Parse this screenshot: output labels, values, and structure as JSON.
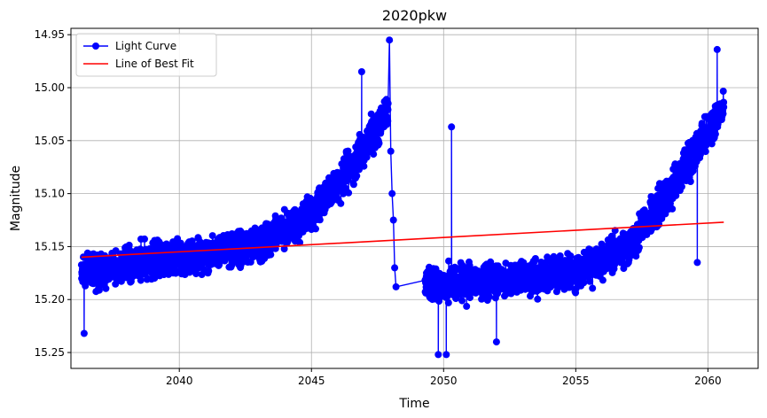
{
  "chart_data": {
    "type": "line",
    "title": "2020pkw",
    "xlabel": "Time",
    "ylabel": "Magnitude",
    "xlim": [
      2035.9,
      2061.9
    ],
    "ylim": [
      15.265,
      14.944
    ],
    "y_inverted": true,
    "grid": true,
    "legend_position": "top-left",
    "xticks": [
      2040,
      2045,
      2050,
      2055,
      2060
    ],
    "xtick_labels": [
      "2040",
      "2045",
      "2050",
      "2055",
      "2060"
    ],
    "yticks": [
      14.95,
      15.0,
      15.05,
      15.1,
      15.15,
      15.2,
      15.25
    ],
    "ytick_labels": [
      "14.95",
      "15.00",
      "15.05",
      "15.10",
      "15.15",
      "15.20",
      "15.25"
    ],
    "series": [
      {
        "name": "Light Curve",
        "color": "#0000ff",
        "marker": "circle",
        "segments": [
          {
            "x_start": 2036.3,
            "x_end": 2047.9,
            "trend_anchors": [
              [
                2036.3,
                15.175
              ],
              [
                2040.0,
                15.16
              ],
              [
                2043.0,
                15.148
              ],
              [
                2045.0,
                15.12
              ],
              [
                2046.5,
                15.075
              ],
              [
                2047.5,
                15.04
              ],
              [
                2047.9,
                15.02
              ]
            ],
            "scatter": 0.028,
            "n_points": 1800
          },
          {
            "x_start": 2047.9,
            "x_end": 2048.2,
            "points": [
              [
                2047.95,
                14.955
              ],
              [
                2048.0,
                15.06
              ],
              [
                2048.05,
                15.1
              ],
              [
                2048.1,
                15.125
              ],
              [
                2048.15,
                15.17
              ],
              [
                2048.2,
                15.188
              ]
            ]
          },
          {
            "x_start": 2049.3,
            "x_end": 2060.6,
            "trend_anchors": [
              [
                2049.3,
                15.185
              ],
              [
                2052.0,
                15.182
              ],
              [
                2055.0,
                15.175
              ],
              [
                2057.0,
                15.15
              ],
              [
                2058.5,
                15.1
              ],
              [
                2059.5,
                15.06
              ],
              [
                2060.6,
                15.02
              ]
            ],
            "scatter": 0.028,
            "n_points": 1700
          }
        ],
        "extra_points": [
          [
            2050.3,
            15.037
          ],
          [
            2049.8,
            15.252
          ],
          [
            2050.1,
            15.252
          ],
          [
            2046.9,
            14.985
          ],
          [
            2060.35,
            14.964
          ],
          [
            2036.4,
            15.232
          ],
          [
            2059.6,
            15.165
          ],
          [
            2052.0,
            15.24
          ]
        ]
      },
      {
        "name": "Line of Best Fit",
        "color": "#ff0000",
        "x": [
          2036.3,
          2060.6
        ],
        "y": [
          15.16,
          15.127
        ]
      }
    ]
  }
}
